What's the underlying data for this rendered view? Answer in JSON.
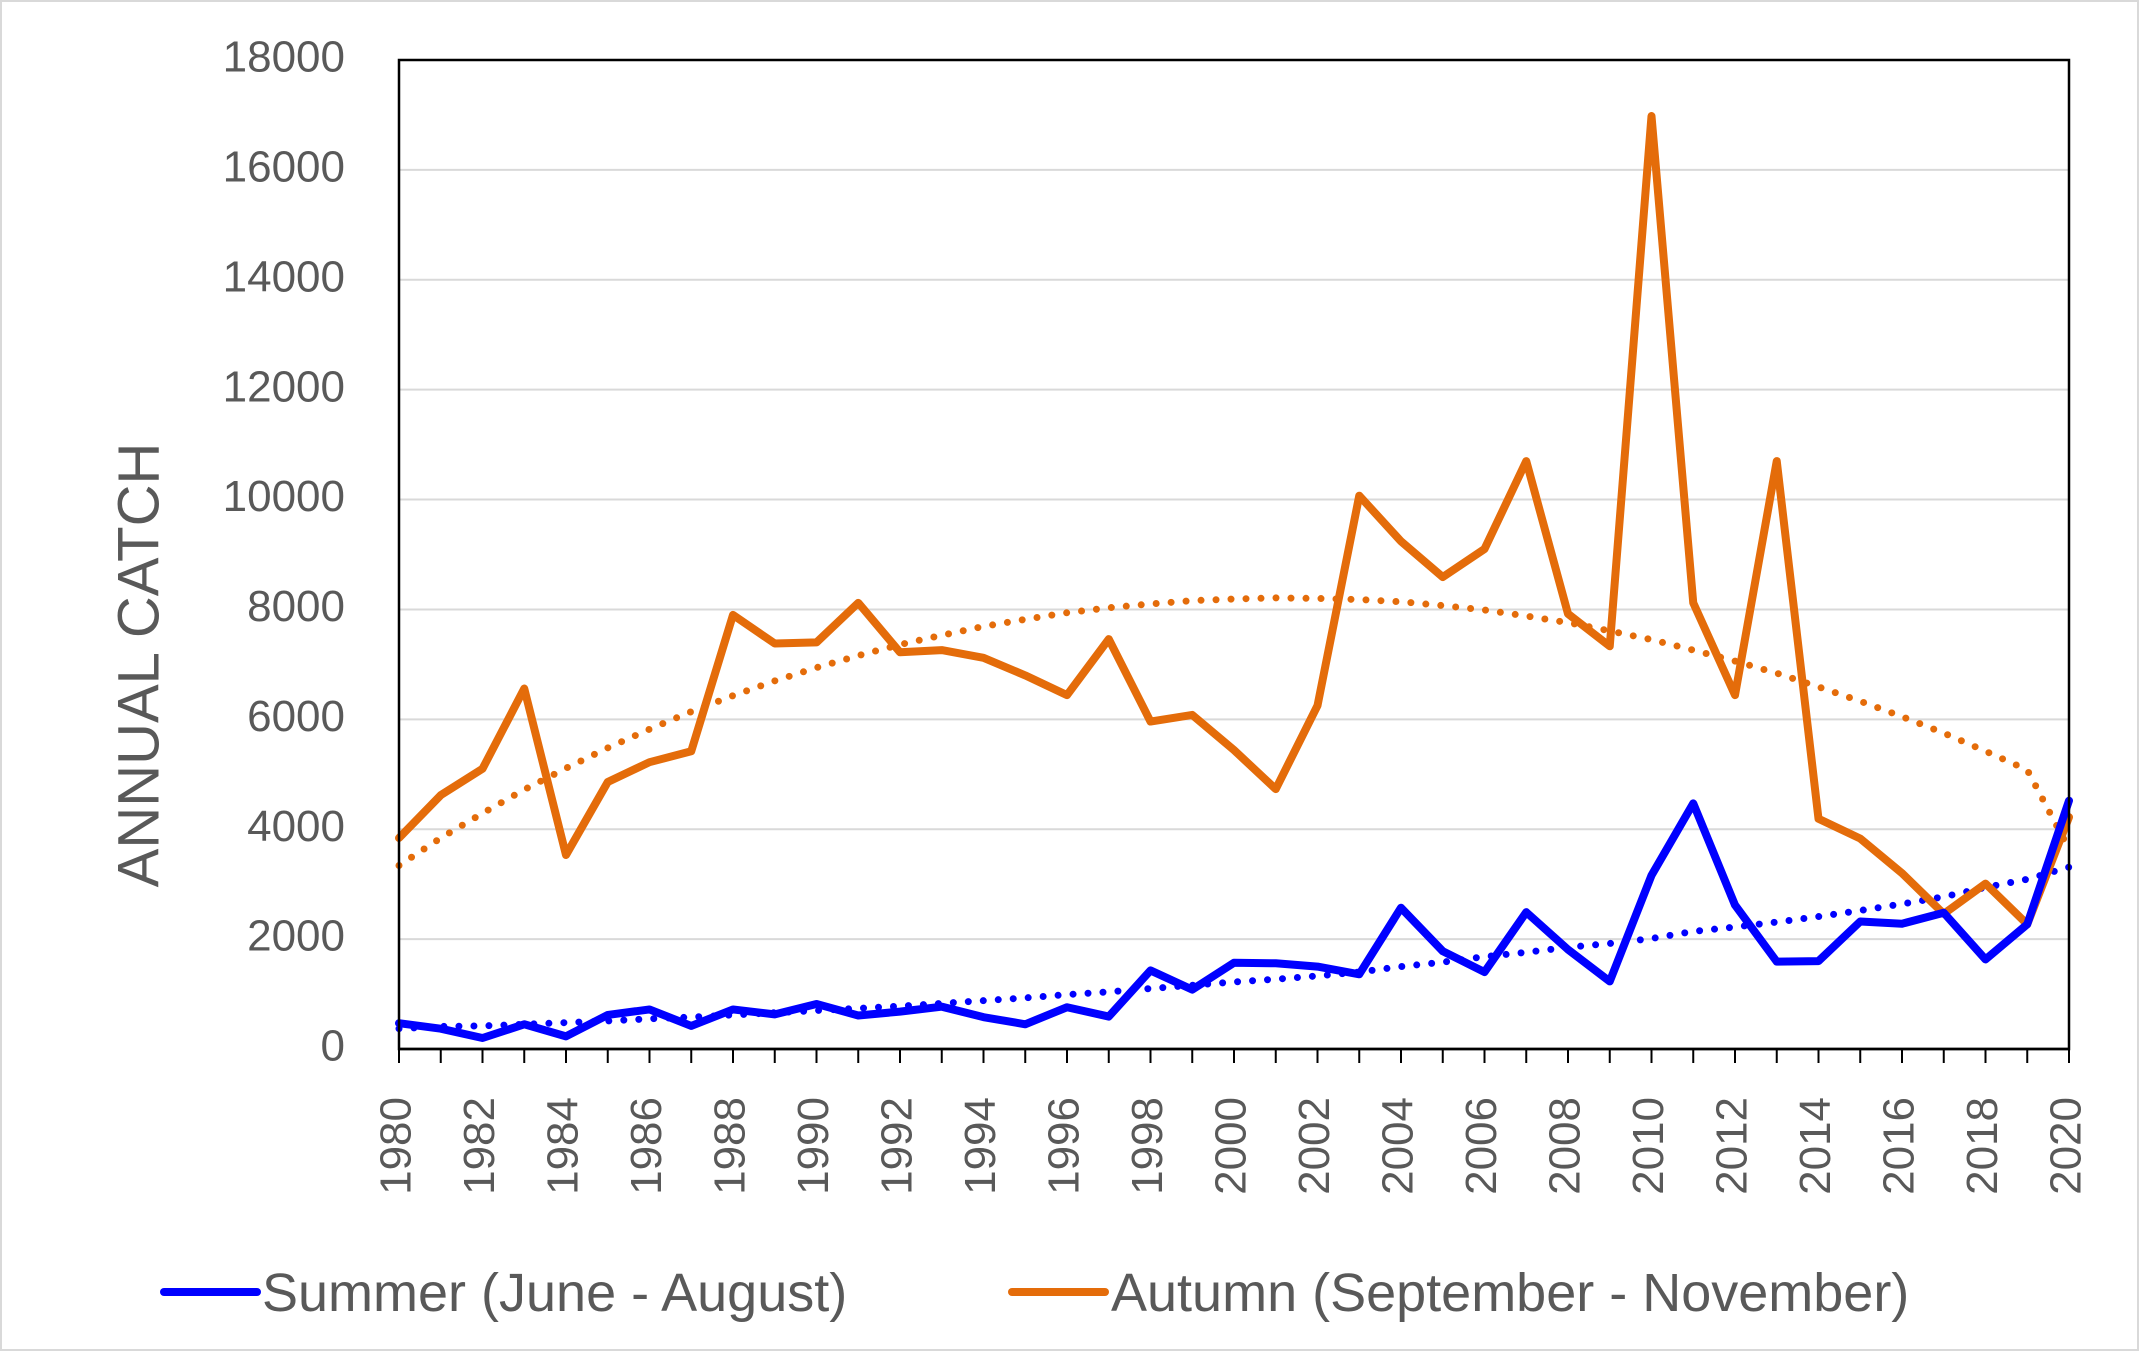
{
  "chart_data": {
    "type": "line",
    "title": "",
    "xlabel": "",
    "ylabel": "ANNUAL CATCH",
    "x": [
      1980,
      1981,
      1982,
      1983,
      1984,
      1985,
      1986,
      1987,
      1988,
      1989,
      1990,
      1991,
      1992,
      1993,
      1994,
      1995,
      1996,
      1997,
      1998,
      1999,
      2000,
      2001,
      2002,
      2003,
      2004,
      2005,
      2006,
      2007,
      2008,
      2009,
      2010,
      2011,
      2012,
      2013,
      2014,
      2015,
      2016,
      2017,
      2018,
      2019,
      2020
    ],
    "xlim": [
      1980,
      2020
    ],
    "ylim": [
      0,
      18000
    ],
    "x_ticks": [
      "1980",
      "1982",
      "1984",
      "1986",
      "1988",
      "1990",
      "1992",
      "1994",
      "1996",
      "1998",
      "2000",
      "2002",
      "2004",
      "2006",
      "2008",
      "2010",
      "2012",
      "2014",
      "2016",
      "2018",
      "2020"
    ],
    "y_ticks": [
      "0",
      "2000",
      "4000",
      "6000",
      "8000",
      "10000",
      "12000",
      "14000",
      "16000",
      "18000"
    ],
    "grid": "horizontal",
    "legend_placement": "bottom",
    "series": [
      {
        "name": "Summer (June - August)",
        "color": "#0000ff",
        "values": [
          470,
          370,
          200,
          450,
          230,
          620,
          720,
          420,
          720,
          630,
          820,
          610,
          680,
          770,
          580,
          450,
          760,
          590,
          1430,
          1080,
          1570,
          1560,
          1500,
          1360,
          2570,
          1780,
          1400,
          2490,
          1810,
          1230,
          3160,
          4470,
          2620,
          1590,
          1600,
          2320,
          2280,
          2480,
          1630,
          2270,
          4520
        ],
        "trend": "polynomial",
        "trend_values": [
          370,
          410,
          420,
          450,
          480,
          510,
          550,
          580,
          620,
          660,
          700,
          740,
          780,
          830,
          880,
          930,
          990,
          1040,
          1100,
          1160,
          1220,
          1270,
          1330,
          1400,
          1500,
          1580,
          1680,
          1760,
          1850,
          1920,
          2010,
          2140,
          2220,
          2310,
          2410,
          2520,
          2640,
          2770,
          2940,
          3090,
          3310
        ]
      },
      {
        "name": "Autumn (September - November)",
        "color": "#e46c0a",
        "values": [
          3840,
          4620,
          5100,
          6560,
          3530,
          4860,
          5220,
          5420,
          7900,
          7380,
          7400,
          8120,
          7220,
          7260,
          7120,
          6800,
          6440,
          7460,
          5960,
          6080,
          5440,
          4730,
          6250,
          10070,
          9240,
          8590,
          9100,
          10700,
          7920,
          7330,
          16980,
          8120,
          6440,
          10700,
          4190,
          3830,
          3200,
          2460,
          3010,
          2270,
          4220
        ]
      },
      {
        "name": "",
        "color": "#e46c0a",
        "values": [
          3340,
          3840,
          4290,
          4720,
          5110,
          5480,
          5820,
          6140,
          6430,
          6700,
          6940,
          7160,
          7360,
          7530,
          7690,
          7820,
          7940,
          8030,
          8100,
          8160,
          8190,
          8210,
          8200,
          8180,
          8140,
          8070,
          7990,
          7880,
          7760,
          7610,
          7450,
          7260,
          7060,
          6840,
          6590,
          6330,
          6050,
          5750,
          5420,
          5080,
          3640
        ]
      }
    ]
  }
}
